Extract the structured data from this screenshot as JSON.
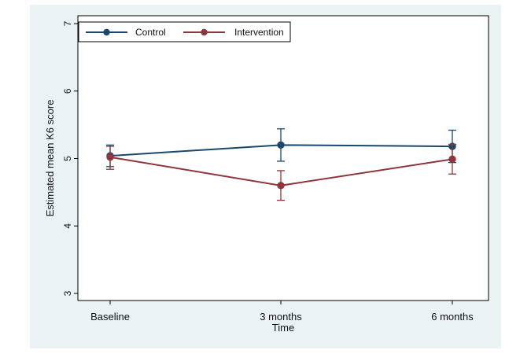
{
  "chart_data": {
    "type": "line",
    "xlabel": "Time",
    "ylabel": "Estimated mean K6 score",
    "categories": [
      "Baseline",
      "3 months",
      "6 months"
    ],
    "ylim": [
      3,
      7
    ],
    "yticks": [
      "3",
      "4",
      "5",
      "6",
      "7"
    ],
    "grid": false,
    "legend_position": "top-left",
    "series": [
      {
        "name": "Control",
        "color": "#1a476f",
        "values": [
          5.04,
          5.2,
          5.18
        ],
        "ci_low": [
          4.88,
          4.96,
          4.94
        ],
        "ci_high": [
          5.2,
          5.44,
          5.42
        ]
      },
      {
        "name": "Intervention",
        "color": "#90353b",
        "values": [
          5.02,
          4.6,
          4.99
        ],
        "ci_low": [
          4.84,
          4.38,
          4.77
        ],
        "ci_high": [
          5.18,
          4.82,
          5.21
        ]
      }
    ]
  }
}
